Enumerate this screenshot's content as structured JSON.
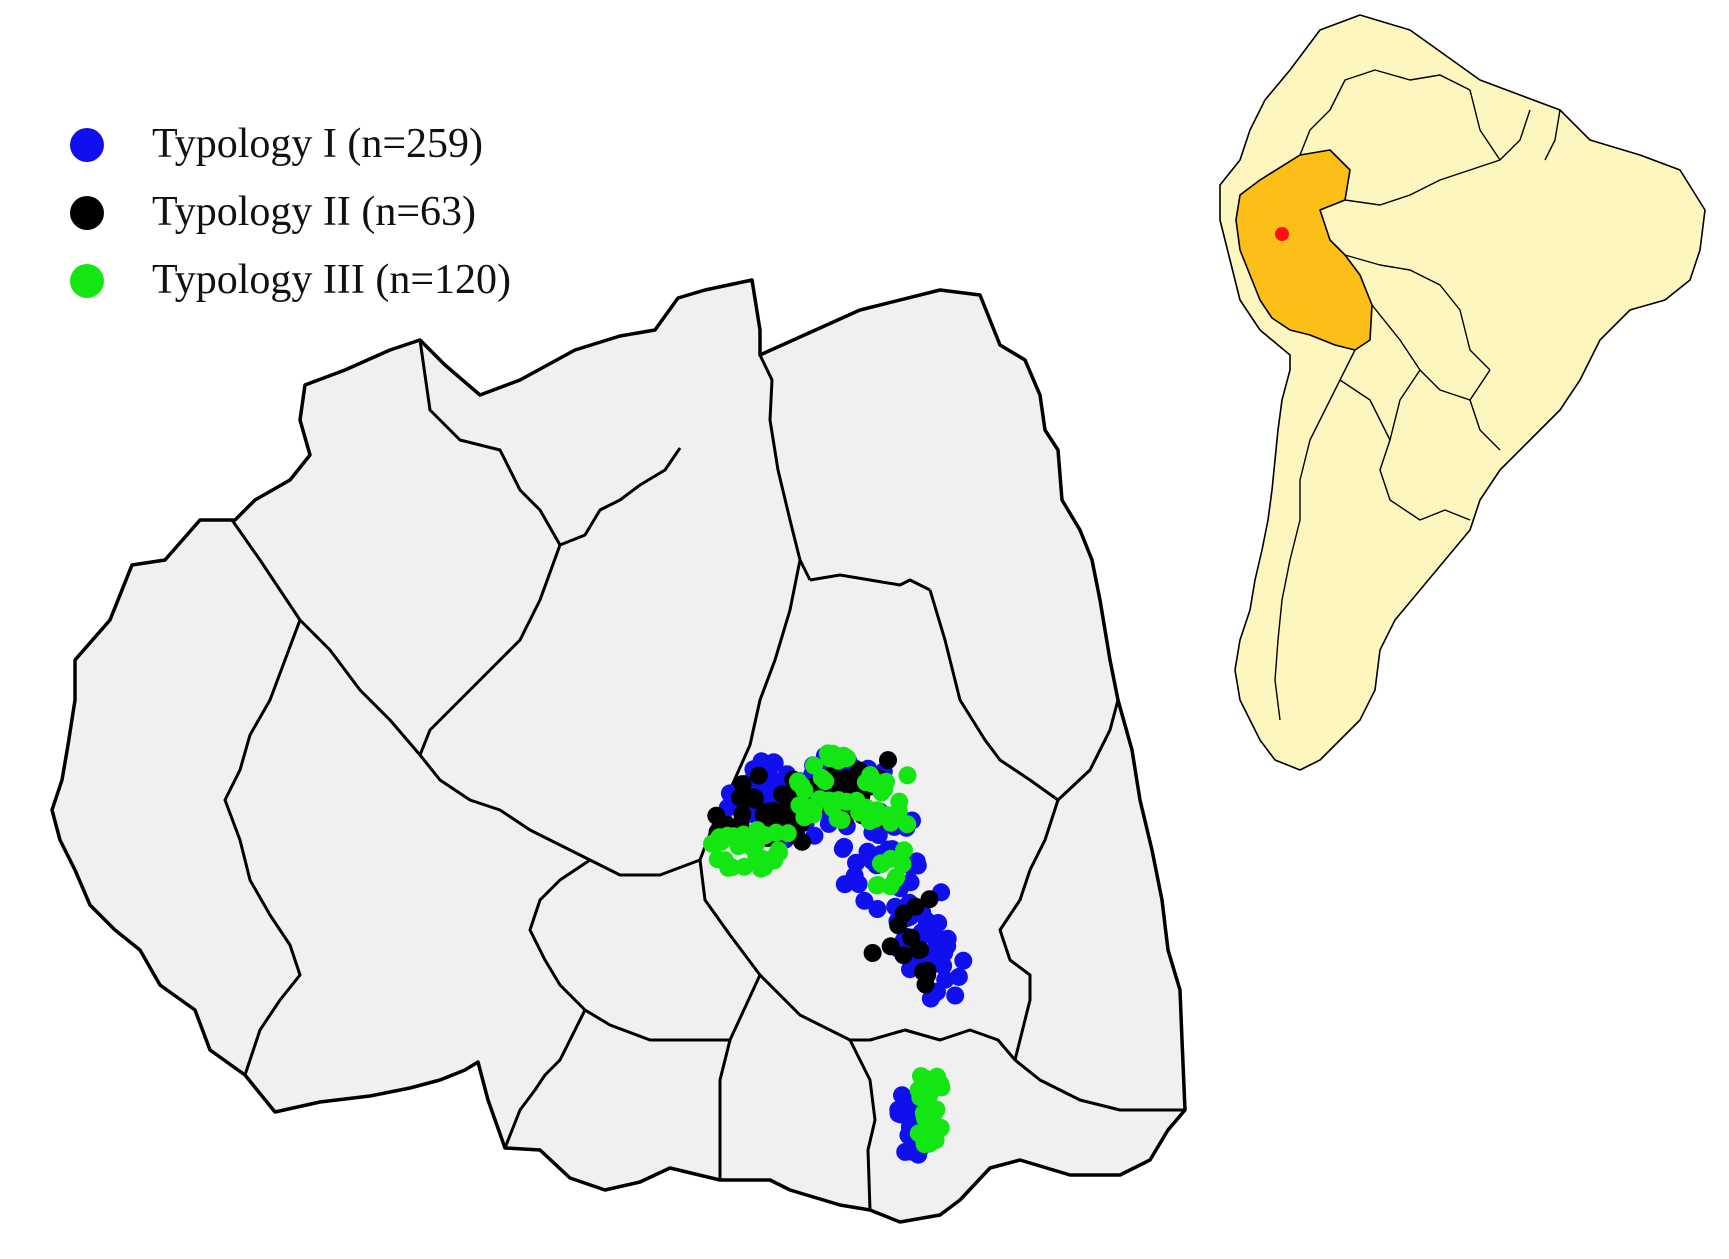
{
  "legend": [
    {
      "label": "Typology I (n=259)",
      "color": "#1010ee"
    },
    {
      "label": "Typology II (n=63)",
      "color": "#000000"
    },
    {
      "label": "Typology III (n=120)",
      "color": "#14e614"
    }
  ],
  "colors": {
    "district_fill": "#f0f0f0",
    "border": "#000000",
    "continent_fill": "#fdf7bf",
    "country_highlight": "#fbbf18",
    "location_marker": "#ff1010"
  },
  "inset_map": {
    "region": "South America",
    "highlighted_country": "Peru"
  }
}
